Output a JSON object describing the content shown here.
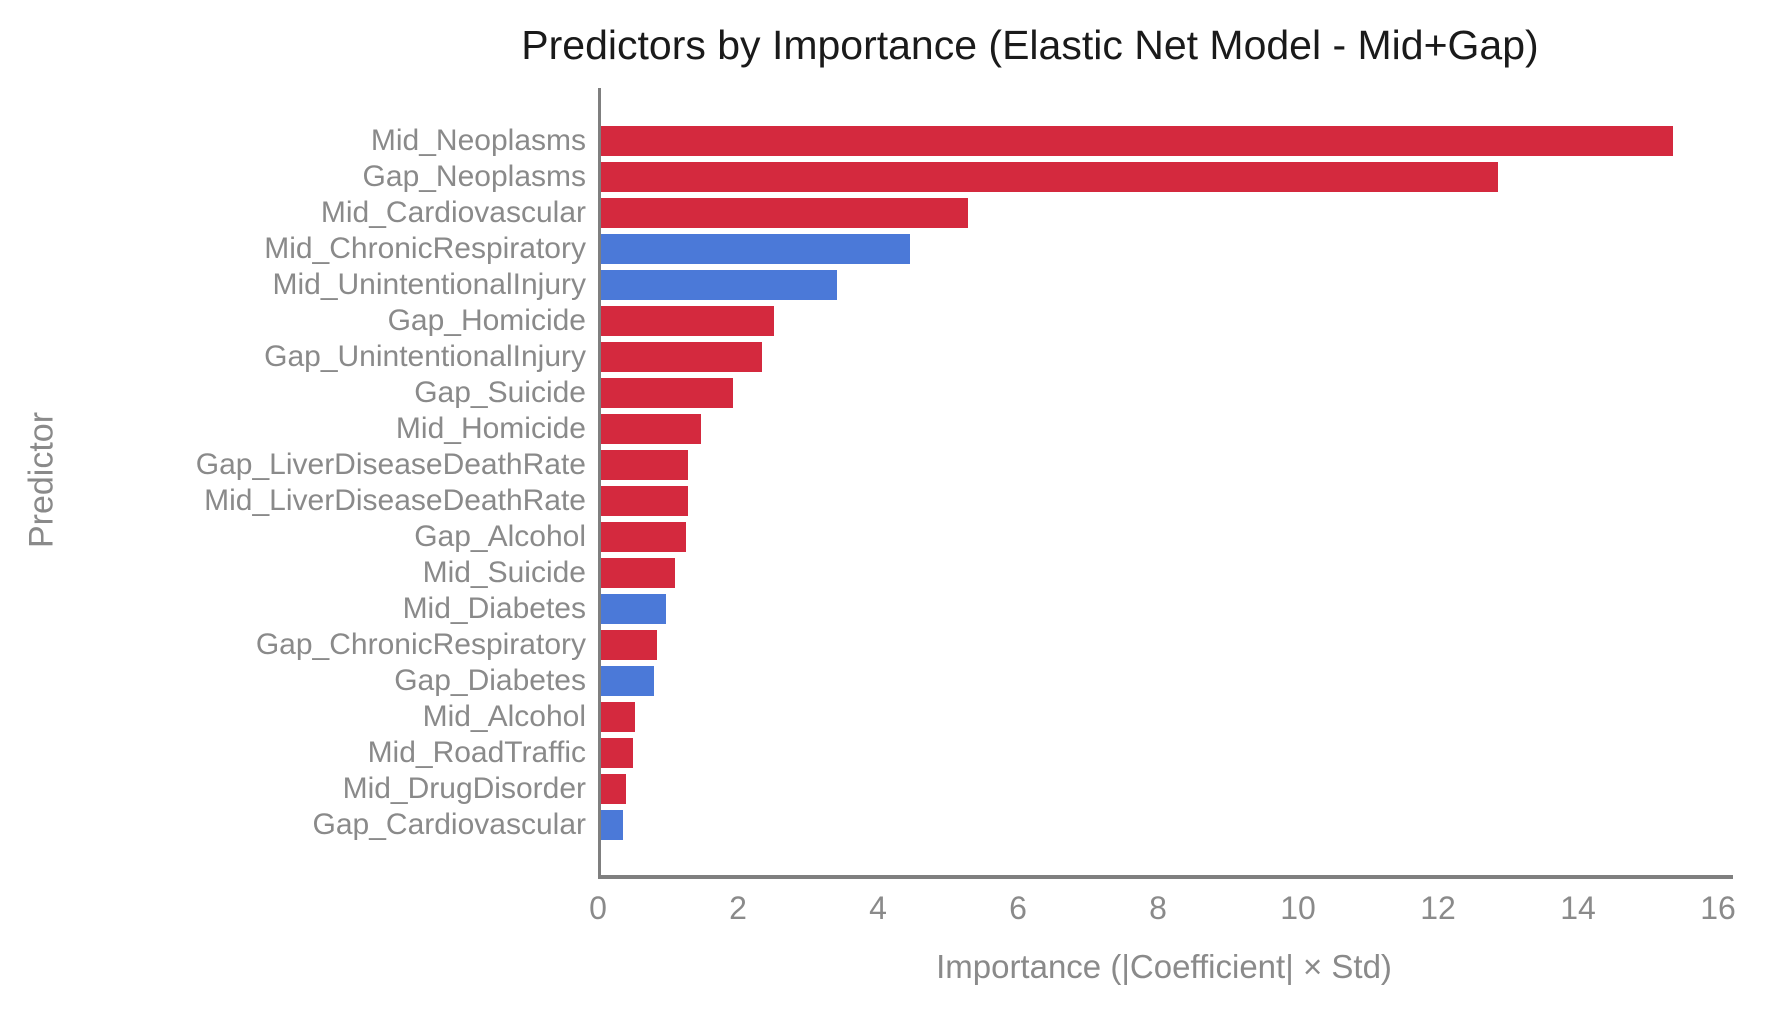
{
  "chart_data": {
    "type": "bar",
    "orientation": "horizontal",
    "title": "Predictors by Importance (Elastic Net Model - Mid+Gap)",
    "xlabel": "Importance (|Coefficient| × Std)",
    "ylabel": "Predictor",
    "xlim": [
      0,
      16
    ],
    "xticks": [
      0,
      2,
      4,
      6,
      8,
      10,
      12,
      14,
      16
    ],
    "grid": false,
    "legend": "none",
    "colors": {
      "red": "#d4293e",
      "blue": "#4b79d8",
      "axis": "#7f7f7f",
      "text": "#8a8a8a",
      "title_text": "#1a1a1a"
    },
    "bars": [
      {
        "label": "Mid_Neoplasms",
        "value": 15.32,
        "color": "red"
      },
      {
        "label": "Gap_Neoplasms",
        "value": 12.81,
        "color": "red"
      },
      {
        "label": "Mid_Cardiovascular",
        "value": 5.24,
        "color": "red"
      },
      {
        "label": "Mid_ChronicRespiratory",
        "value": 4.41,
        "color": "blue"
      },
      {
        "label": "Mid_UnintentionalInjury",
        "value": 3.37,
        "color": "blue"
      },
      {
        "label": "Gap_Homicide",
        "value": 2.47,
        "color": "red"
      },
      {
        "label": "Gap_UnintentionalInjury",
        "value": 2.3,
        "color": "red"
      },
      {
        "label": "Gap_Suicide",
        "value": 1.88,
        "color": "red"
      },
      {
        "label": "Mid_Homicide",
        "value": 1.43,
        "color": "red"
      },
      {
        "label": "Gap_LiverDiseaseDeathRate",
        "value": 1.24,
        "color": "red"
      },
      {
        "label": "Mid_LiverDiseaseDeathRate",
        "value": 1.24,
        "color": "red"
      },
      {
        "label": "Gap_Alcohol",
        "value": 1.22,
        "color": "red"
      },
      {
        "label": "Mid_Suicide",
        "value": 1.06,
        "color": "red"
      },
      {
        "label": "Mid_Diabetes",
        "value": 0.93,
        "color": "blue"
      },
      {
        "label": "Gap_ChronicRespiratory",
        "value": 0.8,
        "color": "red"
      },
      {
        "label": "Gap_Diabetes",
        "value": 0.76,
        "color": "blue"
      },
      {
        "label": "Mid_Alcohol",
        "value": 0.49,
        "color": "red"
      },
      {
        "label": "Mid_RoadTraffic",
        "value": 0.45,
        "color": "red"
      },
      {
        "label": "Mid_DrugDisorder",
        "value": 0.36,
        "color": "red"
      },
      {
        "label": "Gap_Cardiovascular",
        "value": 0.31,
        "color": "blue"
      }
    ]
  }
}
